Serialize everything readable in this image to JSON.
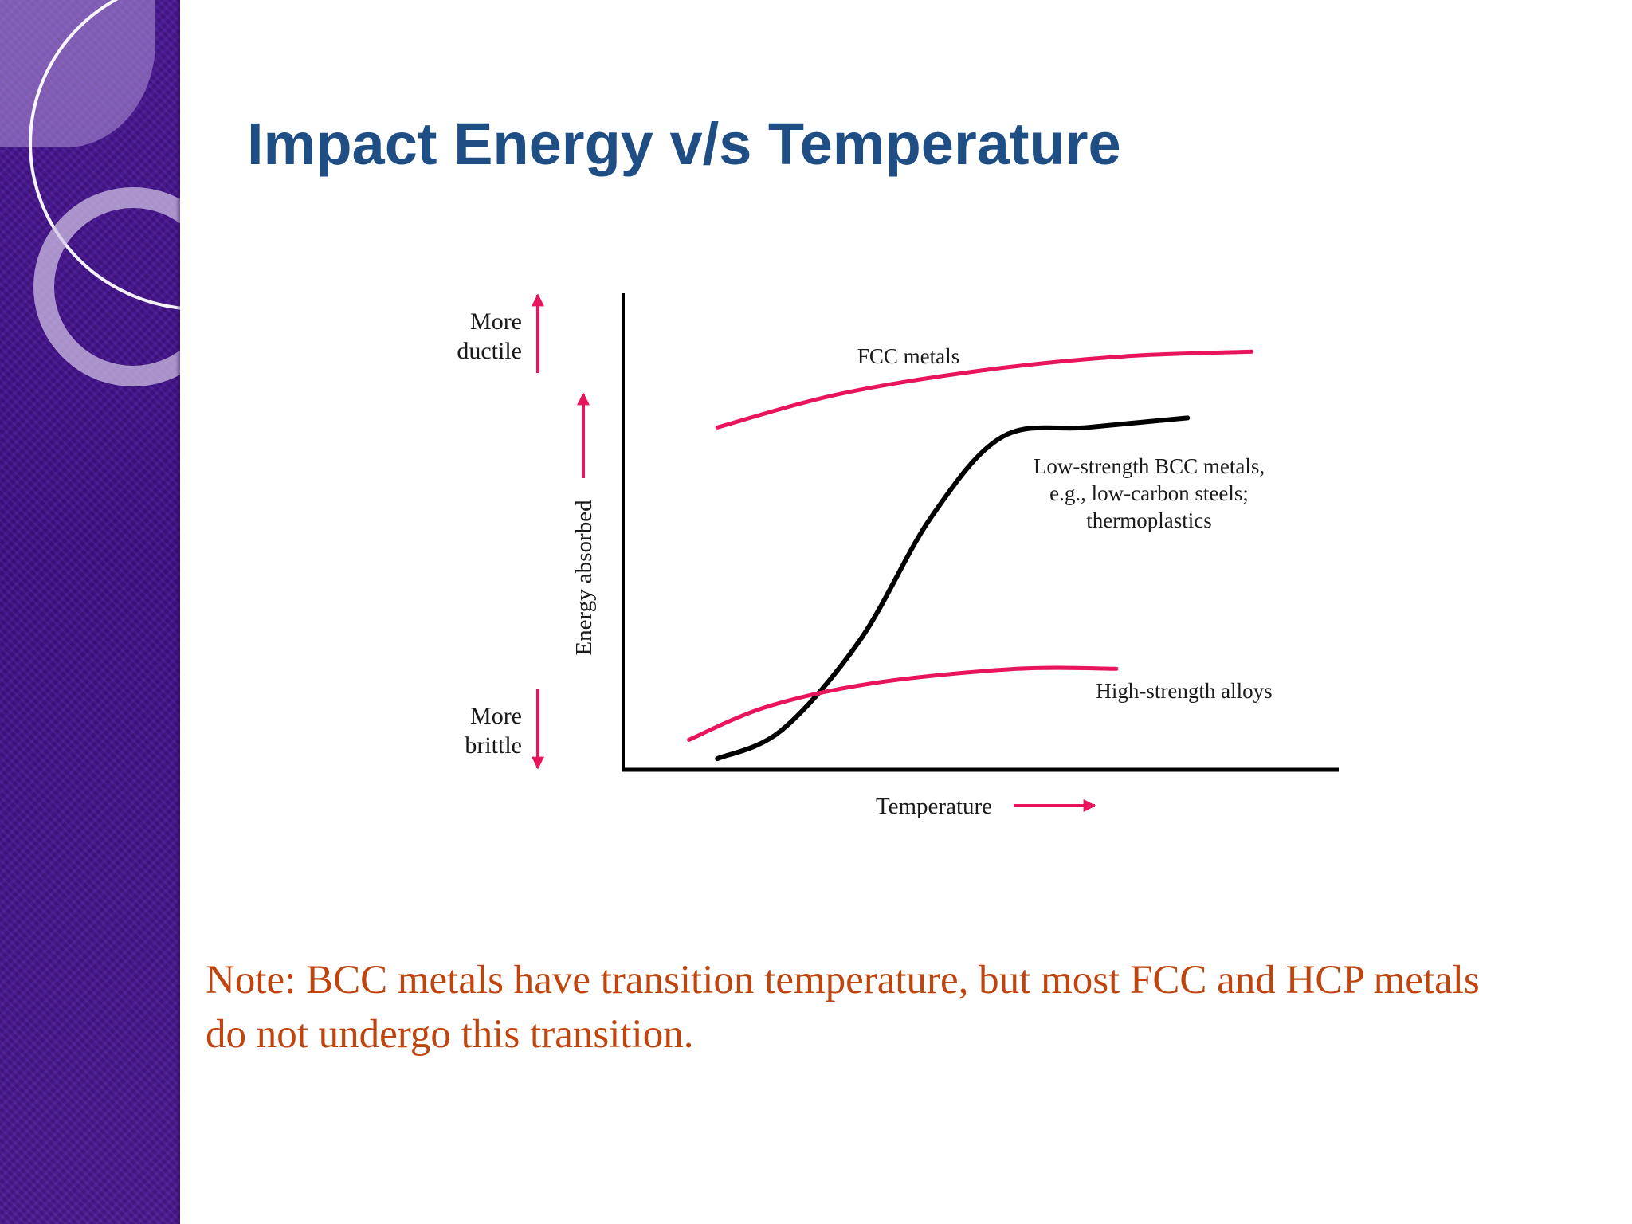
{
  "slide": {
    "title": "Impact Energy v/s Temperature",
    "note_line1": "Note: BCC metals have transition temperature, but most FCC and HCP metals",
    "note_line2": "do not undergo this transition."
  },
  "colors": {
    "title": "#1f4e85",
    "note": "#c0440e",
    "accent_curve": "#e8145c",
    "sidebar": "#4a1890"
  },
  "chart_data": {
    "type": "line",
    "title": "",
    "xlabel": "Temperature",
    "ylabel": "Energy absorbed",
    "top_annotation": [
      "More",
      "ductile"
    ],
    "bottom_annotation": [
      "More",
      "brittle"
    ],
    "series": [
      {
        "name": "FCC metals",
        "color": "#e8145c",
        "x": [
          0.13,
          0.3,
          0.5,
          0.7,
          0.88
        ],
        "y": [
          0.72,
          0.79,
          0.84,
          0.87,
          0.88
        ]
      },
      {
        "name": "Low-strength BCC metals, e.g., low-carbon steels; thermoplastics",
        "label_lines": [
          "Low-strength BCC metals,",
          "e.g., low-carbon steels;",
          "thermoplastics"
        ],
        "color": "#000000",
        "x": [
          0.13,
          0.22,
          0.33,
          0.43,
          0.53,
          0.65,
          0.79
        ],
        "y": [
          0.02,
          0.08,
          0.27,
          0.53,
          0.7,
          0.72,
          0.74
        ]
      },
      {
        "name": "High-strength alloys",
        "color": "#e8145c",
        "x": [
          0.09,
          0.2,
          0.35,
          0.55,
          0.69
        ],
        "y": [
          0.06,
          0.13,
          0.18,
          0.21,
          0.21
        ]
      }
    ]
  }
}
